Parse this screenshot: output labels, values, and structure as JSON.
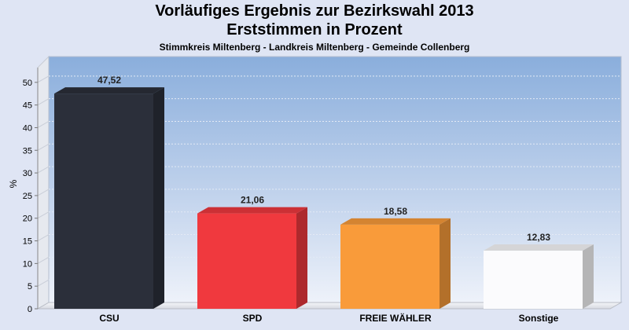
{
  "header": {
    "title": "Vorläufiges Ergebnis zur Bezirkswahl 2013",
    "subtitle": "Erststimmen in Prozent",
    "caption": "Stimmkreis Miltenberg - Landkreis Miltenberg - Gemeinde Collenberg"
  },
  "chart_data": {
    "type": "bar",
    "title": "Vorläufiges Ergebnis zur Bezirkswahl 2013",
    "subtitle": "Erststimmen in Prozent",
    "categories": [
      "CSU",
      "SPD",
      "FREIE WÄHLER",
      "Sonstige"
    ],
    "values": [
      47.52,
      21.06,
      18.58,
      12.83
    ],
    "value_labels": [
      "47,52",
      "21,06",
      "18,58",
      "12,83"
    ],
    "colors": [
      "#2b2f3a",
      "#f0393e",
      "#f99b3a",
      "#fbfbfd"
    ],
    "ylabel": "%",
    "xlabel": "",
    "ylim": [
      0,
      55
    ],
    "yticks": [
      0,
      5,
      10,
      15,
      20,
      25,
      30,
      35,
      40,
      45,
      50
    ],
    "grid": true,
    "legend": "none"
  }
}
